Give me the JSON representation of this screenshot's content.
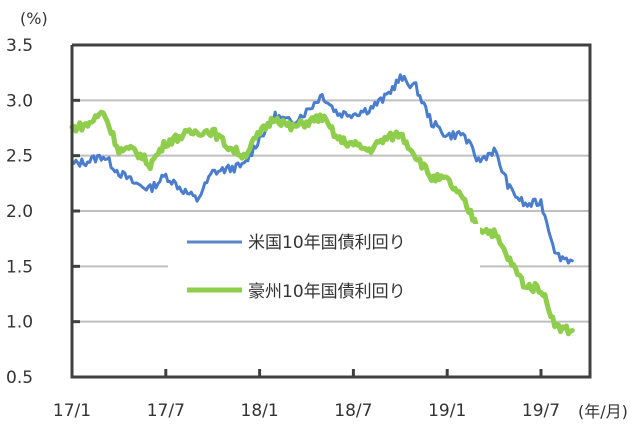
{
  "chart_data": {
    "type": "line",
    "title": "",
    "ylabel": "(%)",
    "xlabel": "(年/月)",
    "ylim": [
      0.5,
      3.5
    ],
    "yticks": [
      "0.5",
      "1.0",
      "1.5",
      "2.0",
      "2.5",
      "3.0",
      "3.5"
    ],
    "xticks": [
      "17/1",
      "17/7",
      "18/1",
      "18/7",
      "19/1",
      "19/7"
    ],
    "grid": "horizontal",
    "legend_position": "inside-lower-center",
    "x": [
      "17/1",
      "17/2",
      "17/3",
      "17/4",
      "17/5",
      "17/6",
      "17/7",
      "17/8",
      "17/9",
      "17/10",
      "17/11",
      "17/12",
      "18/1",
      "18/2",
      "18/3",
      "18/4",
      "18/5",
      "18/6",
      "18/7",
      "18/8",
      "18/9",
      "18/10",
      "18/11",
      "18/12",
      "19/1",
      "19/2",
      "19/3",
      "19/4",
      "19/5",
      "19/6",
      "19/7",
      "19/8",
      "19/9"
    ],
    "series": [
      {
        "name": "米国10年国債利回り",
        "color": "#4a7dcc",
        "values": [
          2.42,
          2.45,
          2.5,
          2.35,
          2.25,
          2.2,
          2.32,
          2.2,
          2.1,
          2.35,
          2.38,
          2.41,
          2.66,
          2.86,
          2.8,
          2.9,
          3.05,
          2.88,
          2.88,
          2.92,
          3.02,
          3.2,
          3.12,
          2.8,
          2.68,
          2.7,
          2.45,
          2.55,
          2.2,
          2.05,
          2.08,
          1.6,
          1.55
        ]
      },
      {
        "name": "豪州10年国債利回り",
        "color": "#8fce4d",
        "values": [
          2.75,
          2.78,
          2.9,
          2.55,
          2.55,
          2.42,
          2.62,
          2.68,
          2.72,
          2.72,
          2.58,
          2.5,
          2.7,
          2.85,
          2.75,
          2.8,
          2.85,
          2.65,
          2.6,
          2.55,
          2.65,
          2.7,
          2.5,
          2.3,
          2.28,
          2.1,
          1.85,
          1.8,
          1.55,
          1.32,
          1.3,
          0.95,
          0.92
        ]
      }
    ]
  },
  "axis": {
    "y_unit": "(%)",
    "x_unit": "(年/月)"
  },
  "legend": [
    {
      "label": "米国10年国債利回り",
      "color": "#5b86c6"
    },
    {
      "label": "豪州10年国債利回り",
      "color": "#8fce4d"
    }
  ]
}
